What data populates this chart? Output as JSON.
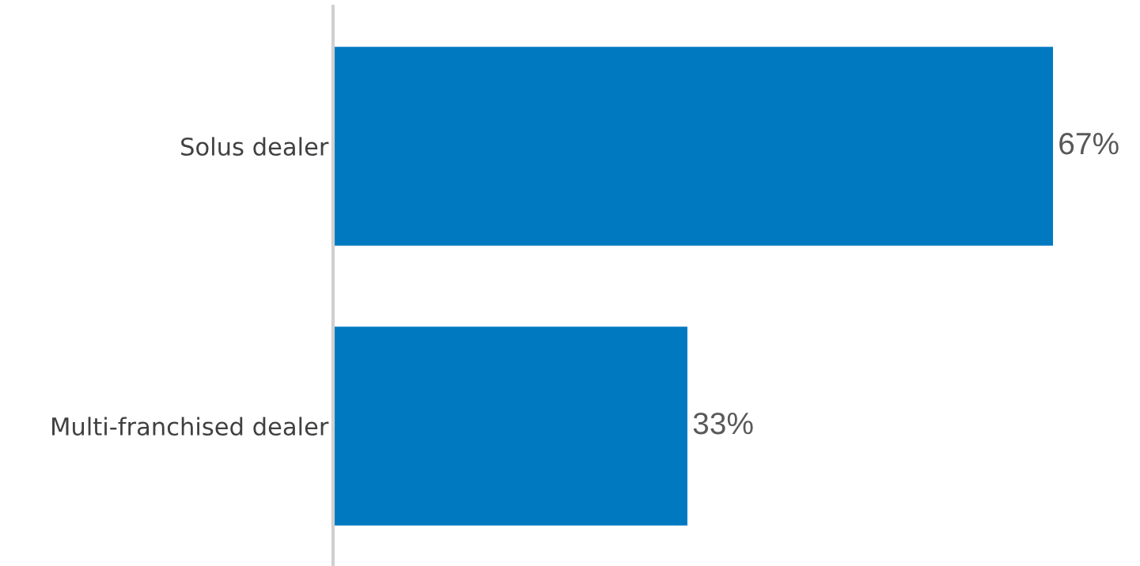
{
  "chart_data": {
    "type": "bar",
    "orientation": "horizontal",
    "categories": [
      "Solus dealer",
      "Multi-franchised dealer"
    ],
    "values": [
      67,
      33
    ],
    "value_labels": [
      "67%",
      "33%"
    ],
    "color": "#0079c1",
    "grid": false,
    "legend": false
  }
}
